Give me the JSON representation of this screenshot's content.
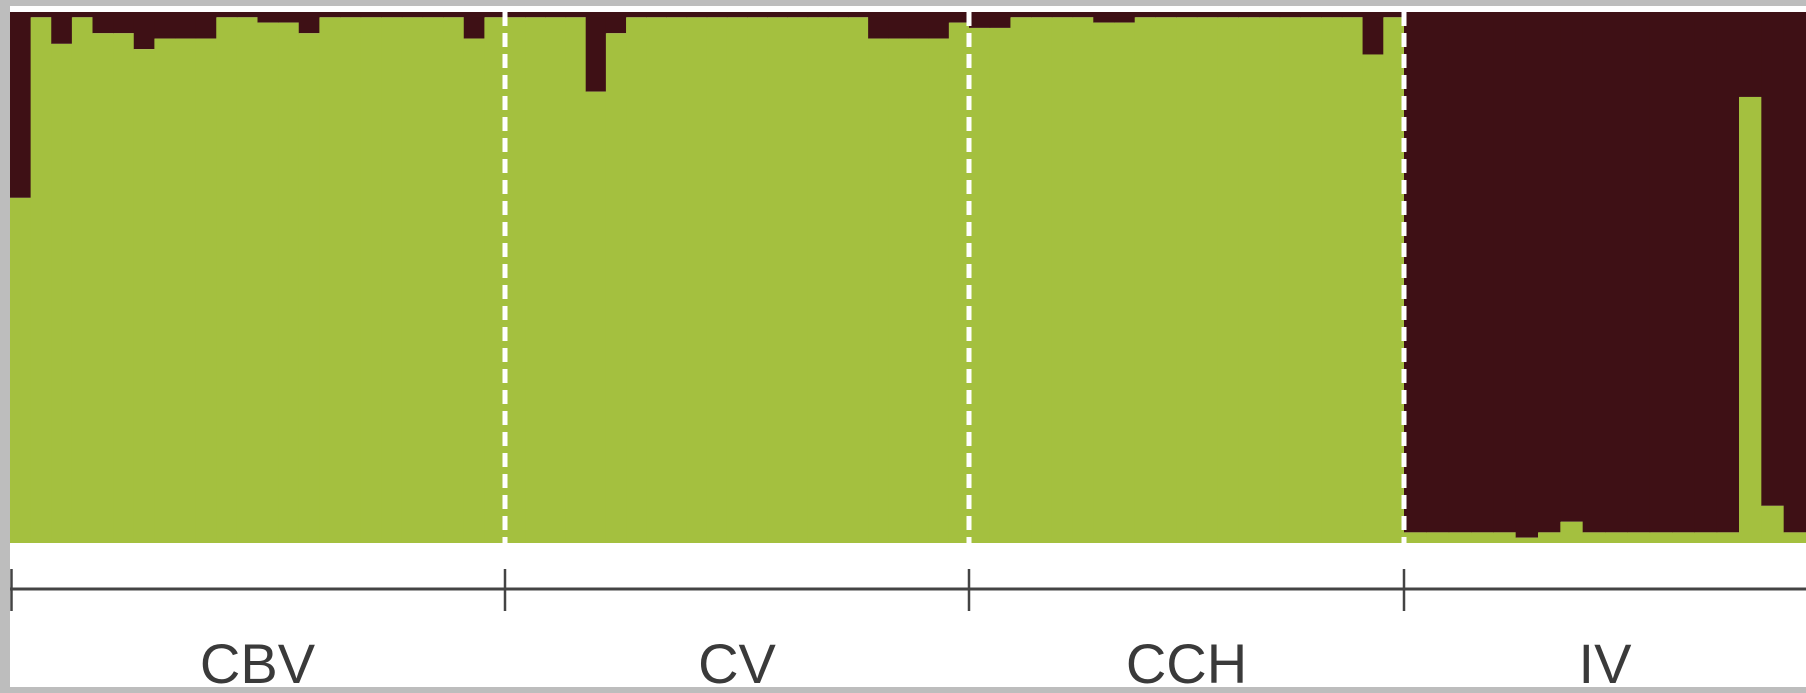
{
  "chart_data": {
    "type": "bar",
    "stacked": true,
    "ylim": [
      0,
      1
    ],
    "grid": false,
    "legend": "none",
    "series": [
      {
        "color": "#a4c03f"
      },
      {
        "color": "#3e1015"
      }
    ],
    "groups": [
      {
        "label": "CBV",
        "values": [
          0.65,
          0.99,
          0.94,
          0.99,
          0.96,
          0.96,
          0.93,
          0.95,
          0.95,
          0.95,
          0.99,
          0.99,
          0.98,
          0.98,
          0.96,
          0.99,
          0.99,
          0.99,
          0.99,
          0.99,
          0.99,
          0.99,
          0.95,
          0.99
        ]
      },
      {
        "label": "CV",
        "values": [
          0.99,
          0.99,
          0.99,
          0.99,
          0.85,
          0.96,
          0.99,
          0.99,
          0.99,
          0.99,
          0.99,
          0.99,
          0.99,
          0.99,
          0.99,
          0.99,
          0.99,
          0.99,
          0.95,
          0.95,
          0.95,
          0.95,
          0.98
        ]
      },
      {
        "label": "CCH",
        "values": [
          0.97,
          0.97,
          0.99,
          0.99,
          0.99,
          0.99,
          0.98,
          0.98,
          0.99,
          0.99,
          0.99,
          0.99,
          0.99,
          0.99,
          0.99,
          0.99,
          0.99,
          0.99,
          0.99,
          0.92,
          0.99
        ]
      },
      {
        "label": "IV",
        "values": [
          0.02,
          0.02,
          0.02,
          0.02,
          0.02,
          0.01,
          0.02,
          0.04,
          0.02,
          0.02,
          0.02,
          0.02,
          0.02,
          0.02,
          0.02,
          0.84,
          0.07,
          0.02
        ]
      }
    ]
  }
}
